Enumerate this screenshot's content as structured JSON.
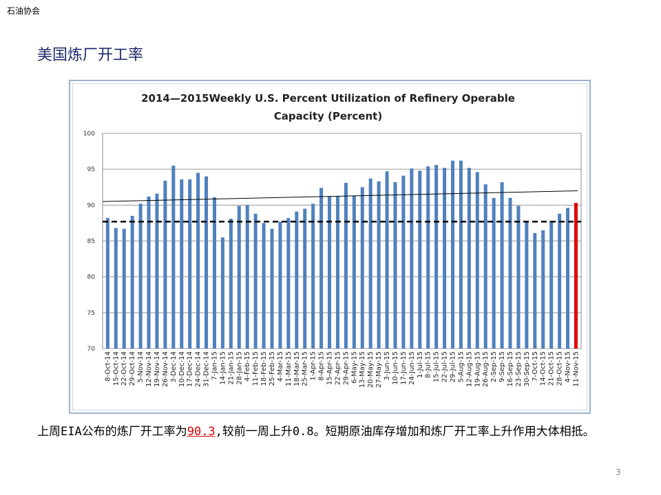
{
  "header": {
    "org": "石油协会"
  },
  "slide": {
    "title": "美国炼厂开工率",
    "page_number": "3"
  },
  "caption": {
    "prefix": "上周EIA公布的炼厂开工率为",
    "highlight": "90.3",
    "suffix": ",较前一周上升0.8。短期原油库存增加和炼厂开工率上升作用大体相抵。"
  },
  "colors": {
    "bar": "#4f81bd",
    "last_bar": "#e00000",
    "avg_line": "#000000",
    "trend_line": "#000000",
    "title": "#1f2a6b"
  },
  "chart_data": {
    "type": "bar",
    "title": "2014—2015Weekly U.S. Percent Utilization of Refinery Operable",
    "subtitle": "Capacity (Percent)",
    "xlabel": "",
    "ylabel": "",
    "ylim": [
      70,
      100
    ],
    "yticks": [
      70,
      75,
      80,
      85,
      90,
      95,
      100
    ],
    "grid": true,
    "categories": [
      "8-Oct-14",
      "15-Oct-14",
      "22-Oct-14",
      "29-Oct-14",
      "5-Nov-14",
      "12-Nov-14",
      "19-Nov-14",
      "26-Nov-14",
      "3-Dec-14",
      "10-Dec-14",
      "17-Dec-14",
      "24-Dec-14",
      "31-Dec-14",
      "7-Jan-15",
      "14-Jan-15",
      "21-Jan-15",
      "28-Jan-15",
      "4-Feb-15",
      "11-Feb-15",
      "18-Feb-15",
      "25-Feb-15",
      "4-Mar-15",
      "11-Mar-15",
      "18-Mar-15",
      "25-Mar-15",
      "1-Apr-15",
      "8-Apr-15",
      "15-Apr-15",
      "22-Apr-15",
      "29-Apr-15",
      "6-May-15",
      "13-May-15",
      "20-May-15",
      "27-May-15",
      "3-Jun-15",
      "10-Jun-15",
      "17-Jun-15",
      "24-Jun-15",
      "1-Jul-15",
      "8-Jul-15",
      "15-Jul-15",
      "22-Jul-15",
      "29-Jul-15",
      "5-Aug-15",
      "12-Aug-15",
      "19-Aug-15",
      "26-Aug-15",
      "2-Sep-15",
      "9-Sep-15",
      "16-Sep-15",
      "23-Sep-15",
      "30-Sep-15",
      "7-Oct-15",
      "14-Oct-15",
      "21-Oct-15",
      "28-Oct-15",
      "4-Nov-15",
      "11-Nov-15"
    ],
    "values": [
      88.2,
      86.8,
      86.7,
      88.5,
      90.2,
      91.2,
      91.6,
      93.4,
      95.5,
      93.6,
      93.6,
      94.5,
      94.0,
      91.1,
      85.5,
      88.1,
      89.9,
      90.0,
      88.8,
      87.5,
      86.7,
      87.7,
      88.2,
      89.1,
      89.5,
      90.2,
      92.4,
      91.2,
      91.2,
      93.1,
      91.3,
      92.5,
      93.7,
      93.3,
      94.7,
      93.2,
      94.1,
      95.1,
      94.8,
      95.4,
      95.6,
      95.2,
      96.2,
      96.2,
      95.2,
      94.6,
      92.9,
      91.0,
      93.2,
      91.0,
      89.9,
      87.6,
      86.1,
      86.5,
      87.8,
      88.8,
      89.6,
      90.3
    ],
    "highlight_index": 57,
    "average_line": {
      "value": 87.7,
      "style": "dashed"
    },
    "trend_line": {
      "start": 90.5,
      "end": 92.0
    }
  }
}
